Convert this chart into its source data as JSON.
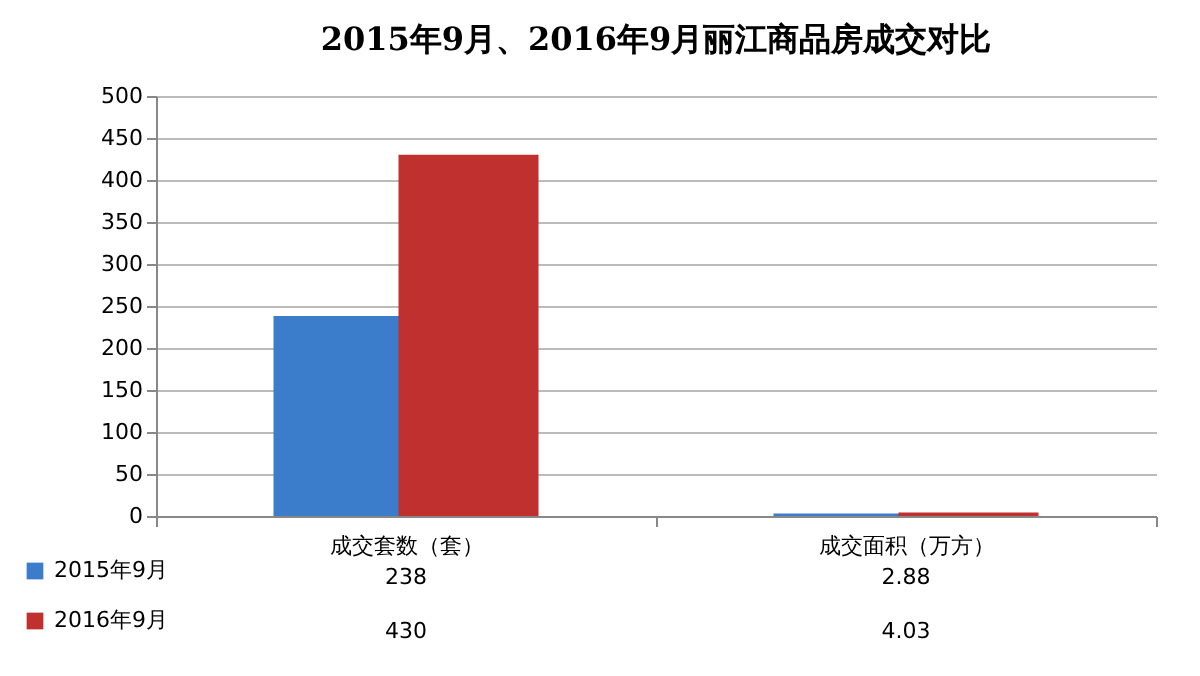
{
  "chart_data": {
    "type": "bar",
    "title": "2015年9月、2016年9月丽江商品房成交对比",
    "categories": [
      "成交套数（套）",
      "成交面积（万方）"
    ],
    "series": [
      {
        "name": "2015年9月",
        "color": "#3c7dcb",
        "values": [
          238,
          2.88
        ]
      },
      {
        "name": "2016年9月",
        "color": "#c0302e",
        "values": [
          430,
          4.03
        ]
      }
    ],
    "ylim": [
      0,
      500
    ],
    "yticks": [
      0,
      50,
      100,
      150,
      200,
      250,
      300,
      350,
      400,
      450,
      500
    ],
    "grid": "y",
    "legend": "bottom",
    "data_labels": true
  }
}
